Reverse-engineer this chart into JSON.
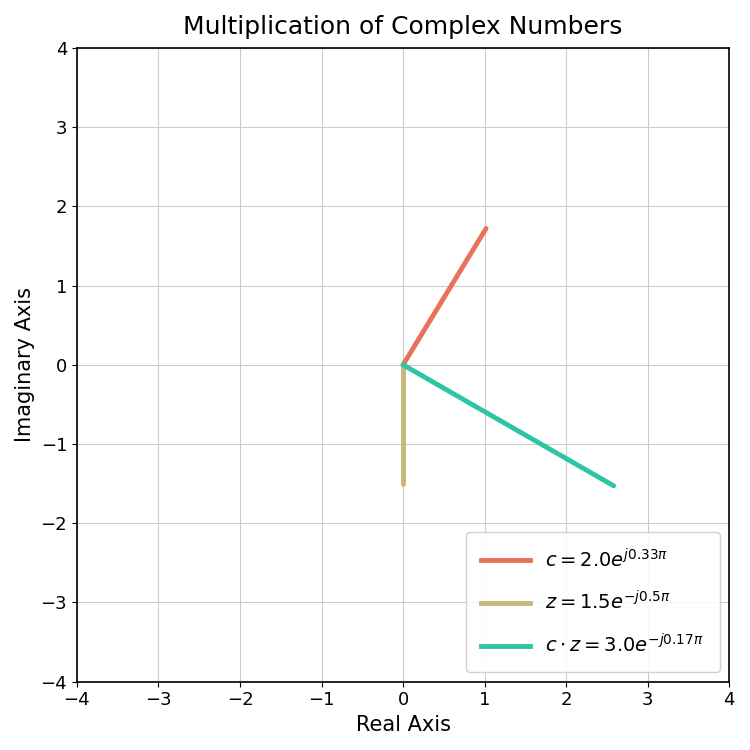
{
  "title": "Multiplication of Complex Numbers",
  "xlabel": "Real Axis",
  "ylabel": "Imaginary Axis",
  "xlim": [
    -4,
    4
  ],
  "ylim": [
    -4,
    4
  ],
  "vectors": [
    {
      "magnitude": 2.0,
      "phase_pi": 0.33,
      "color": "#E8735A",
      "label": "$c = 2.0e^{j0.33\\pi}$",
      "lw": 3.5
    },
    {
      "magnitude": 1.5,
      "phase_pi": -0.5,
      "color": "#C8B878",
      "label": "$z = 1.5e^{-j0.5\\pi}$",
      "lw": 3.5
    },
    {
      "magnitude": 3.0,
      "phase_pi": -0.17,
      "color": "#2EC4A5",
      "label": "$c \\cdot z = 3.0e^{-j0.17\\pi}$",
      "lw": 3.5
    }
  ],
  "grid_color": "#cccccc",
  "background_color": "#ffffff",
  "title_fontsize": 18,
  "label_fontsize": 15,
  "tick_fontsize": 13,
  "legend_fontsize": 14
}
